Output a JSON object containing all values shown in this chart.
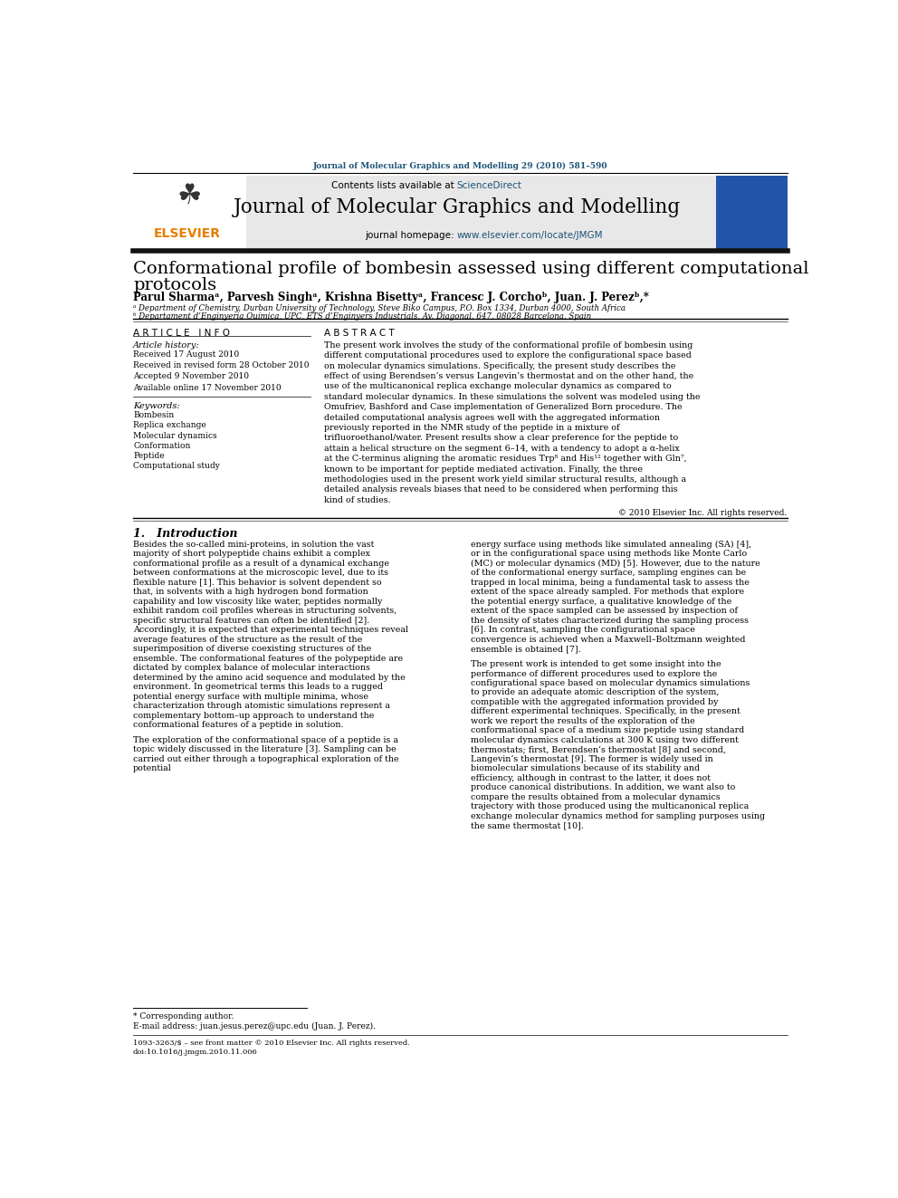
{
  "page_width": 9.92,
  "page_height": 13.23,
  "background_color": "#ffffff",
  "top_journal_ref": "Journal of Molecular Graphics and Modelling 29 (2010) 581–590",
  "header_bg": "#e8e8e8",
  "header_text_main": "Journal of Molecular Graphics and Modelling",
  "sciencedirect_color": "#1a5276",
  "elsevier_color": "#e67e00",
  "article_title_line1": "Conformational profile of bombesin assessed using different computational",
  "article_title_line2": "protocols",
  "authors": "Parul Sharmaᵃ, Parvesh Singhᵃ, Krishna Bisettyᵃ, Francesc J. Corchoᵇ, Juan. J. Perezᵇ,*",
  "affil_a": "ᵃ Department of Chemistry, Durban University of Technology, Steve Biko Campus, P.O. Box 1334, Durban 4000, South Africa",
  "affil_b": "ᵇ Departament d’Enginyeria Química, UPC, ETS d’Enginyers Industrials, Av. Diagonal, 647, 08028 Barcelona, Spain",
  "article_history_label": "Article history:",
  "received1": "Received 17 August 2010",
  "received2": "Received in revised form 28 October 2010",
  "accepted": "Accepted 9 November 2010",
  "available": "Available online 17 November 2010",
  "keywords_label": "Keywords:",
  "keywords": [
    "Bombesin",
    "Replica exchange",
    "Molecular dynamics",
    "Conformation",
    "Peptide",
    "Computational study"
  ],
  "abstract_text": "The present work involves the study of the conformational profile of bombesin using different computational procedures used to explore the configurational space based on molecular dynamics simulations. Specifically, the present study describes the effect of using Berendsen’s versus Langevin’s thermostat and on the other hand, the use of the multicanonical replica exchange molecular dynamics as compared to standard molecular dynamics. In these simulations the solvent was modeled using the Omufriev, Bashford and Case implementation of Generalized Born procedure. The detailed computational analysis agrees well with the aggregated information previously reported in the NMR study of the peptide in a mixture of trifluoroethanol/water. Present results show a clear preference for the peptide to attain a helical structure on the segment 6–14, with a tendency to adopt a α-helix at the C-terminus aligning the aromatic residues Trp⁸ and His¹² together with Gln⁷, known to be important for peptide mediated activation. Finally, the three methodologies used in the present work yield similar structural results, although a detailed analysis reveals biases that need to be considered when performing this kind of studies.",
  "copyright_text": "© 2010 Elsevier Inc. All rights reserved.",
  "intro_header": "1.   Introduction",
  "intro_col1": "Besides the so-called mini-proteins, in solution the vast majority of short polypeptide chains exhibit a complex conformational profile as a result of a dynamical exchange between conformations at the microscopic level, due to its flexible nature [1]. This behavior is solvent dependent so that, in solvents with a high hydrogen bond formation capability and low viscosity like water, peptides normally exhibit random coil profiles whereas in structuring solvents, specific structural features can often be identified [2]. Accordingly, it is expected that experimental techniques reveal average features of the structure as the result of the superimposition of diverse coexisting structures of the ensemble. The conformational features of the polypeptide are dictated by complex balance of molecular interactions determined by the amino acid sequence and modulated by the environment. In geometrical terms this leads to a rugged potential energy surface with multiple minima, whose characterization through atomistic simulations represent a complementary bottom–up approach to understand the conformational features of a peptide in solution.\n\n    The exploration of the conformational space of a peptide is a topic widely discussed in the literature [3]. Sampling can be carried out either through a topographical exploration of the potential",
  "intro_col2": "energy surface using methods like simulated annealing (SA) [4], or in the configurational space using methods like Monte Carlo (MC) or molecular dynamics (MD) [5]. However, due to the nature of the conformational energy surface, sampling engines can be trapped in local minima, being a fundamental task to assess the extent of the space already sampled. For methods that explore the potential energy surface, a qualitative knowledge of the extent of the space sampled can be assessed by inspection of the density of states characterized during the sampling process [6]. In contrast, sampling the configurational space convergence is achieved when a Maxwell–Boltzmann weighted ensemble is obtained [7].\n\n    The present work is intended to get some insight into the performance of different procedures used to explore the configurational space based on molecular dynamics simulations to provide an adequate atomic description of the system, compatible with the aggregated information provided by different experimental techniques. Specifically, in the present work we report the results of the exploration of the conformational space of a medium size peptide using standard molecular dynamics calculations at 300 K using two different thermostats; first, Berendsen’s thermostat [8] and second, Langevin’s thermostat [9]. The former is widely used in biomolecular simulations because of its stability and efficiency, although in contrast to the latter, it does not produce canonical distributions. In addition, we want also to compare the results obtained from a molecular dynamics trajectory with those produced using the multicanonical replica exchange molecular dynamics method for sampling purposes using the same thermostat [10].",
  "footnote_star": "* Corresponding author.",
  "footnote_email": "E-mail address: juan.jesus.perez@upc.edu (Juan. J. Perez).",
  "issn_text": "1093-3263/$ – see front matter © 2010 Elsevier Inc. All rights reserved.",
  "doi_text": "doi:10.1016/j.jmgm.2010.11.006"
}
